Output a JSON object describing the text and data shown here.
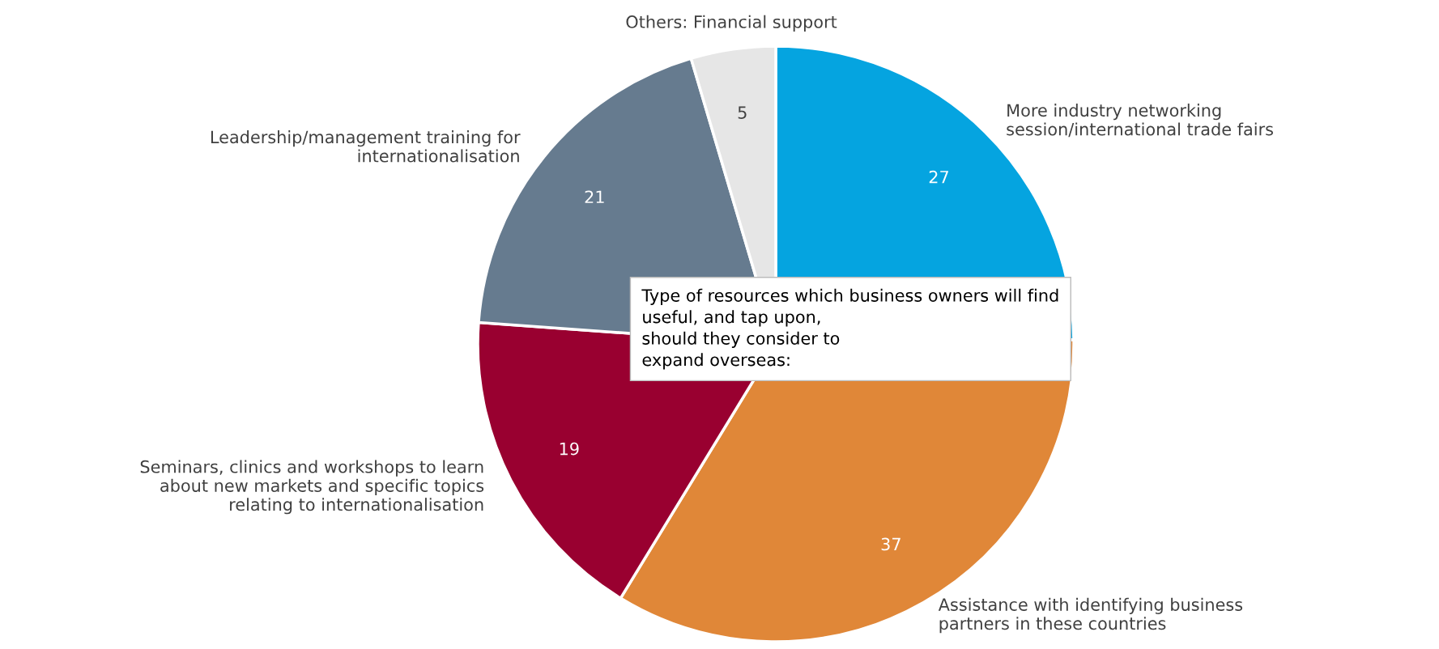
{
  "chart_data": {
    "type": "pie",
    "title": "Type of resources which business owners will find\nuseful, and tap upon,\nshould they consider to\nexpand overseas:",
    "categories": [
      "More industry networking\nsession/international trade fairs",
      "Assistance with identifying business\npartners in these countries",
      "Seminars, clinics and workshops to learn\nabout new markets and specific topics\nrelating to internationalisation",
      "Leadership/management training for\ninternationalisation",
      "Others: Financial support"
    ],
    "values": [
      27,
      37,
      19,
      21,
      5
    ],
    "colors": [
      "#05a4e0",
      "#e08738",
      "#990030",
      "#667b8f",
      "#e6e6e6"
    ],
    "data_labels": true,
    "legend": false
  }
}
